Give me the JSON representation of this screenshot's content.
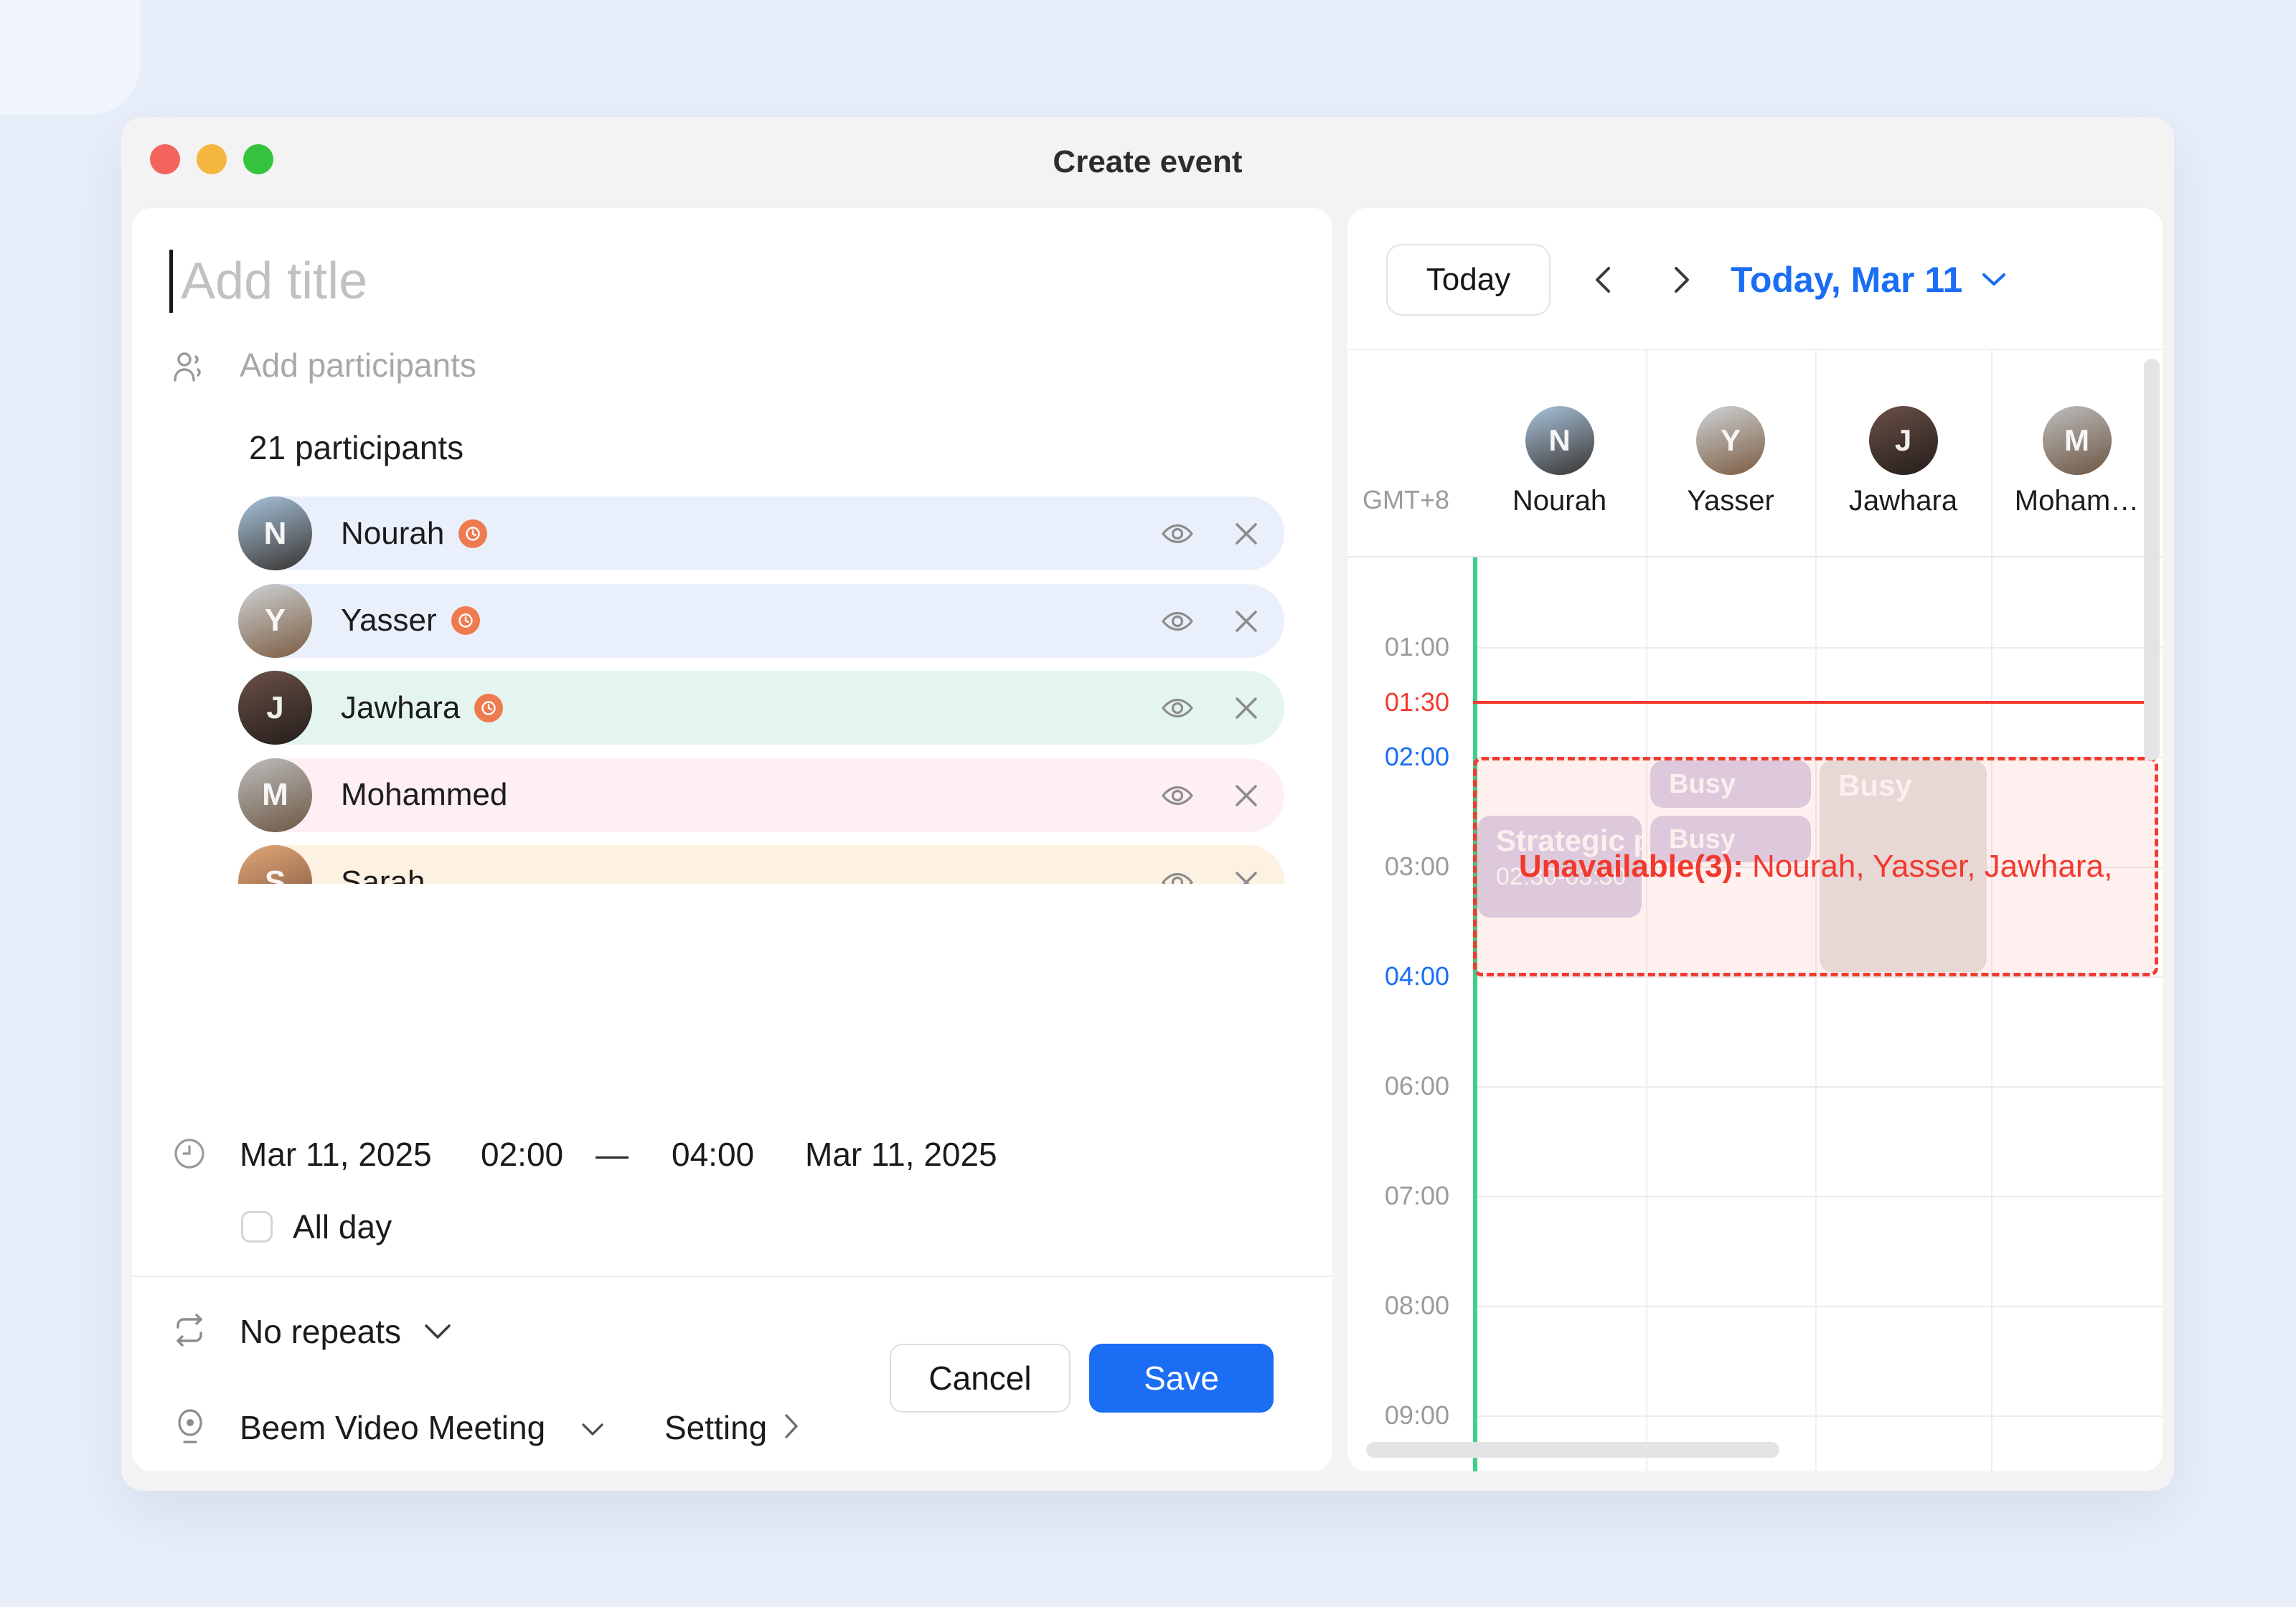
{
  "window": {
    "title": "Create event"
  },
  "form": {
    "title_placeholder": "Add title",
    "add_participants_placeholder": "Add participants",
    "participants_count": "21 participants",
    "participants": [
      {
        "name": "Nourah",
        "initial": "N",
        "late_badge": true,
        "row_bg": "#e9f0fb",
        "avatar_from": "#a9c4dd",
        "avatar_to": "#37332f"
      },
      {
        "name": "Yasser",
        "initial": "Y",
        "late_badge": true,
        "row_bg": "#e9f0fb",
        "avatar_from": "#cfd3d6",
        "avatar_to": "#7b5c41"
      },
      {
        "name": "Jawhara",
        "initial": "J",
        "late_badge": true,
        "row_bg": "#e4f5ef",
        "avatar_from": "#6b5148",
        "avatar_to": "#241d1a"
      },
      {
        "name": "Mohammed",
        "initial": "M",
        "late_badge": false,
        "row_bg": "#fdeff3",
        "avatar_from": "#bdbdbd",
        "avatar_to": "#6d5743"
      },
      {
        "name": "Sarah",
        "initial": "S",
        "late_badge": false,
        "row_bg": "#fdf1e2",
        "avatar_from": "#e0a878",
        "avatar_to": "#7e523a"
      }
    ],
    "datetime": {
      "start_date": "Mar 11, 2025",
      "start_time": "02:00",
      "range_separator": "—",
      "end_time": "04:00",
      "end_date": "Mar 11, 2025"
    },
    "all_day_label": "All day",
    "repeat_value": "No repeats",
    "meeting_provider": "Beem Video Meeting",
    "setting_label": "Setting",
    "cancel_label": "Cancel",
    "save_label": "Save"
  },
  "calendar": {
    "today_button": "Today",
    "current_date_label": "Today, Mar 11",
    "timezone": "GMT+8",
    "columns": [
      {
        "name": "Nourah",
        "initial": "N",
        "avatar_from": "#a9c4dd",
        "avatar_to": "#37332f"
      },
      {
        "name": "Yasser",
        "initial": "Y",
        "avatar_from": "#cfd3d6",
        "avatar_to": "#7b5c41"
      },
      {
        "name": "Jawhara",
        "initial": "J",
        "avatar_from": "#6b5148",
        "avatar_to": "#241d1a"
      },
      {
        "name": "Moham…",
        "initial": "M",
        "avatar_from": "#bdbdbd",
        "avatar_to": "#6d5743"
      }
    ],
    "time_labels": [
      {
        "text": "01:00",
        "style": "muted"
      },
      {
        "text": "01:30",
        "style": "current"
      },
      {
        "text": "02:00",
        "style": "selected"
      },
      {
        "text": "03:00",
        "style": "muted"
      },
      {
        "text": "04:00",
        "style": "selected"
      },
      {
        "text": "06:00",
        "style": "muted"
      },
      {
        "text": "07:00",
        "style": "muted"
      },
      {
        "text": "08:00",
        "style": "muted"
      },
      {
        "text": "09:00",
        "style": "muted"
      }
    ],
    "current_time": "01:30",
    "events": [
      {
        "column": 0,
        "title": "Strategic p",
        "time_label": "02:30-03:30",
        "start": "02:30",
        "end": "03:30",
        "variant": "lavender"
      },
      {
        "column": 1,
        "title": "Busy",
        "time_label": "",
        "start": "02:00",
        "end": "02:30",
        "variant": "lavender"
      },
      {
        "column": 1,
        "title": "Busy",
        "time_label": "",
        "start": "02:30",
        "end": "03:00",
        "variant": "lavender"
      },
      {
        "column": 2,
        "title": "Busy",
        "time_label": "",
        "start": "02:00",
        "end": "04:00",
        "variant": "gray"
      }
    ],
    "selection": {
      "start": "02:00",
      "end": "04:00",
      "label_bold": "Unavailable(3):",
      "label_rest": " Nourah, Yasser, Jawhara,"
    }
  },
  "colors": {
    "accent_blue": "#1a6ef5",
    "save_blue": "#1b6df3",
    "alert_red": "#f2392e",
    "green_line": "#3fcf86",
    "badge_orange": "#ee7a50"
  }
}
